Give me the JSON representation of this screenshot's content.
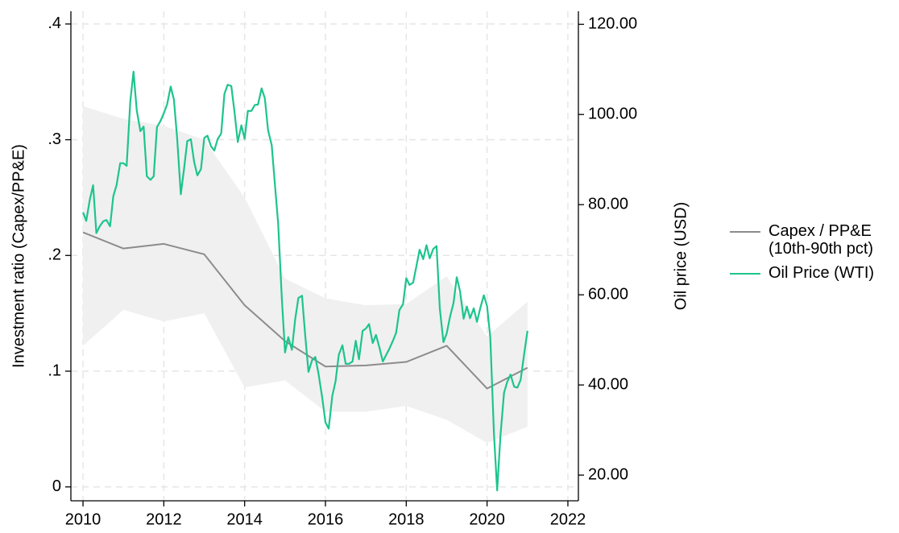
{
  "chart_data": {
    "type": "line",
    "y_label": "Investment ratio (Capex/PP&E)",
    "y2_label": "Oil price (USD)",
    "xlim": [
      2009.7,
      2022.26
    ],
    "xticks": [
      2010,
      2012,
      2014,
      2016,
      2018,
      2020,
      2022
    ],
    "ylim": [
      -0.012,
      0.411
    ],
    "yticks": [
      {
        "value": 0,
        "label": "0"
      },
      {
        "value": 0.1,
        "label": ".1"
      },
      {
        "value": 0.2,
        "label": ".2"
      },
      {
        "value": 0.3,
        "label": ".3"
      },
      {
        "value": 0.4,
        "label": ".4"
      }
    ],
    "y2lim": [
      14.3,
      122.9
    ],
    "y2ticks": [
      {
        "value": 20,
        "label": "20.00"
      },
      {
        "value": 40,
        "label": "40.00"
      },
      {
        "value": 60,
        "label": "60.00"
      },
      {
        "value": 80,
        "label": "80.00"
      },
      {
        "value": 100,
        "label": "100.00"
      },
      {
        "value": 120,
        "label": "120.00"
      }
    ],
    "grid": true,
    "legend": "right",
    "series": [
      {
        "name": "Capex / PP&E (10th-90th pct)",
        "color": "#8c8c8c",
        "band_color": "#f0f0f0",
        "x": [
          2010,
          2011,
          2012,
          2013,
          2014,
          2015,
          2016,
          2017,
          2018,
          2019,
          2020,
          2021
        ],
        "values": [
          0.22,
          0.206,
          0.21,
          0.201,
          0.157,
          0.126,
          0.104,
          0.105,
          0.108,
          0.122,
          0.085,
          0.103
        ],
        "low": [
          0.122,
          0.153,
          0.143,
          0.15,
          0.086,
          0.092,
          0.065,
          0.065,
          0.07,
          0.058,
          0.038,
          0.052
        ],
        "high": [
          0.329,
          0.318,
          0.312,
          0.3,
          0.25,
          0.18,
          0.163,
          0.157,
          0.158,
          0.182,
          0.13,
          0.16
        ]
      },
      {
        "name": "Oil Price (WTI)",
        "color": "#1dc48e",
        "axis": "y2",
        "x": [
          2010.0,
          2010.08,
          2010.17,
          2010.25,
          2010.33,
          2010.42,
          2010.5,
          2010.58,
          2010.67,
          2010.75,
          2010.83,
          2010.92,
          2011.0,
          2011.08,
          2011.17,
          2011.25,
          2011.33,
          2011.42,
          2011.5,
          2011.58,
          2011.67,
          2011.75,
          2011.83,
          2011.92,
          2012.0,
          2012.08,
          2012.17,
          2012.25,
          2012.33,
          2012.42,
          2012.5,
          2012.58,
          2012.67,
          2012.75,
          2012.83,
          2012.92,
          2013.0,
          2013.08,
          2013.17,
          2013.25,
          2013.33,
          2013.42,
          2013.5,
          2013.58,
          2013.67,
          2013.75,
          2013.83,
          2013.92,
          2014.0,
          2014.08,
          2014.17,
          2014.25,
          2014.33,
          2014.42,
          2014.5,
          2014.58,
          2014.67,
          2014.75,
          2014.83,
          2014.92,
          2015.0,
          2015.08,
          2015.17,
          2015.25,
          2015.33,
          2015.42,
          2015.5,
          2015.58,
          2015.67,
          2015.75,
          2015.83,
          2015.92,
          2016.0,
          2016.08,
          2016.17,
          2016.25,
          2016.33,
          2016.42,
          2016.5,
          2016.58,
          2016.67,
          2016.75,
          2016.83,
          2016.92,
          2017.0,
          2017.08,
          2017.17,
          2017.25,
          2017.33,
          2017.42,
          2017.5,
          2017.58,
          2017.67,
          2017.75,
          2017.83,
          2017.92,
          2018.0,
          2018.08,
          2018.17,
          2018.25,
          2018.33,
          2018.42,
          2018.5,
          2018.58,
          2018.67,
          2018.75,
          2018.83,
          2018.92,
          2019.0,
          2019.08,
          2019.17,
          2019.25,
          2019.33,
          2019.42,
          2019.5,
          2019.58,
          2019.67,
          2019.75,
          2019.83,
          2019.92,
          2020.0,
          2020.08,
          2020.17,
          2020.25,
          2020.33,
          2020.42,
          2020.5,
          2020.58,
          2020.67,
          2020.75,
          2020.83,
          2020.92,
          2021.0
        ],
        "values": [
          78.3,
          76.4,
          81.2,
          84.3,
          73.7,
          75.3,
          76.3,
          76.6,
          75.2,
          81.9,
          84.3,
          89.2,
          89.2,
          88.6,
          102.9,
          109.5,
          100.9,
          96.3,
          97.3,
          86.3,
          85.5,
          86.3,
          97.2,
          98.6,
          100.3,
          102.2,
          106.2,
          103.3,
          94.7,
          82.3,
          87.9,
          94.1,
          94.5,
          89.5,
          86.5,
          87.9,
          94.8,
          95.3,
          92.9,
          92.0,
          94.5,
          95.8,
          104.6,
          106.6,
          106.3,
          100.5,
          93.9,
          97.6,
          94.6,
          100.8,
          100.8,
          102.1,
          102.2,
          105.8,
          103.6,
          96.5,
          93.2,
          84.4,
          75.8,
          59.3,
          47.2,
          50.6,
          47.8,
          54.5,
          59.3,
          59.8,
          50.9,
          42.9,
          45.5,
          46.2,
          42.4,
          37.2,
          31.7,
          30.3,
          37.6,
          40.8,
          46.7,
          48.8,
          44.7,
          44.7,
          45.2,
          49.8,
          45.7,
          52.0,
          52.5,
          53.5,
          49.3,
          51.1,
          48.5,
          45.2,
          46.6,
          48.0,
          49.8,
          51.6,
          56.6,
          57.9,
          63.7,
          62.2,
          62.7,
          66.3,
          70.0,
          67.9,
          71.0,
          68.1,
          70.2,
          70.8,
          57.0,
          49.5,
          51.4,
          55.0,
          58.2,
          63.9,
          60.8,
          54.7,
          57.4,
          54.8,
          57.0,
          54.0,
          57.0,
          59.9,
          57.5,
          50.5,
          29.2,
          16.6,
          28.6,
          38.3,
          40.7,
          42.3,
          39.6,
          39.4,
          41.1,
          47.0,
          52.0
        ]
      }
    ]
  }
}
